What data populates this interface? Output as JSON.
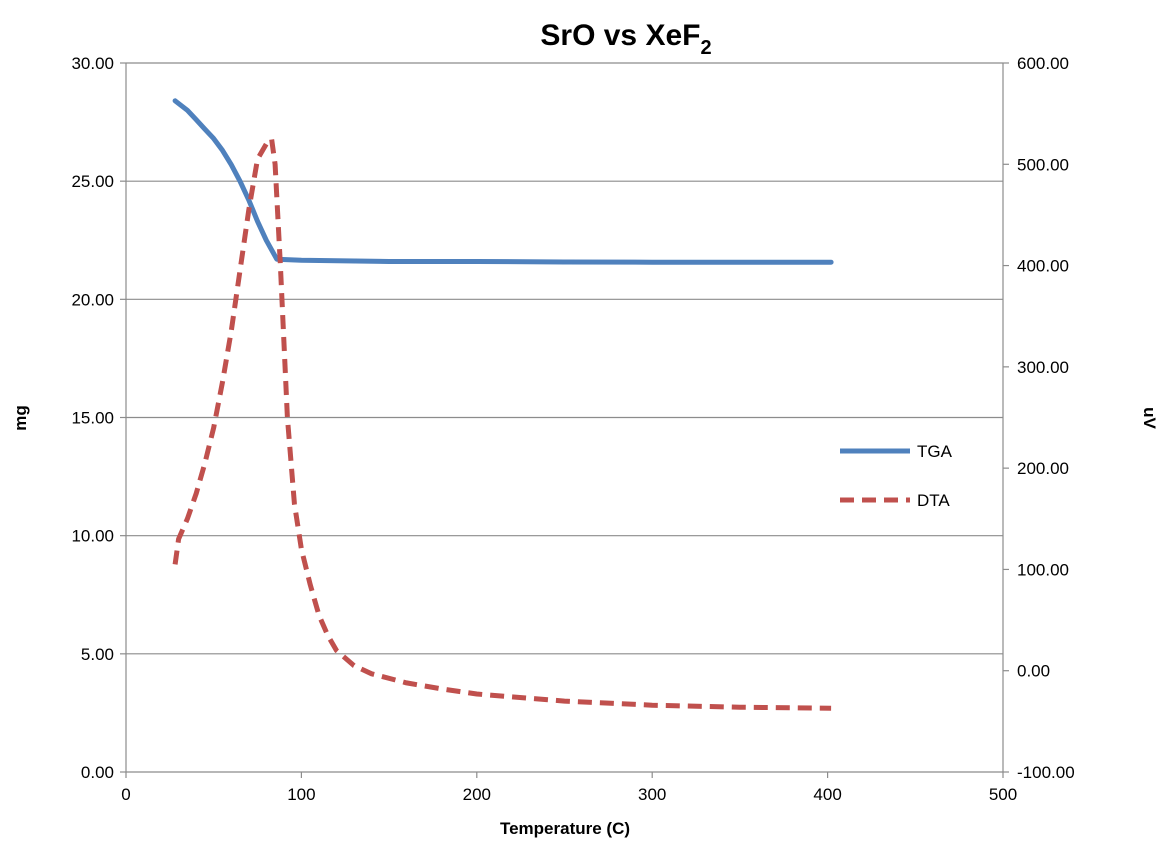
{
  "chart_data": {
    "type": "line",
    "title": "SrO vs XeF",
    "title_subscript": "2",
    "xlabel": "Temperature (C)",
    "ylabel": "mg",
    "y2label": "uV",
    "xlim": [
      0,
      500
    ],
    "ylim": [
      0,
      30
    ],
    "y2lim": [
      -100,
      600
    ],
    "x_ticks": [
      "0",
      "100",
      "200",
      "300",
      "400",
      "500"
    ],
    "y_ticks": [
      "0.00",
      "5.00",
      "10.00",
      "15.00",
      "20.00",
      "25.00",
      "30.00"
    ],
    "y2_ticks": [
      "-100.00",
      "0.00",
      "100.00",
      "200.00",
      "300.00",
      "400.00",
      "500.00",
      "600.00"
    ],
    "grid": "horizontal",
    "legend_position": "right",
    "series": [
      {
        "name": "TGA",
        "axis": "left",
        "color": "#4f81bd",
        "line_style": "solid",
        "x": [
          28,
          35,
          40,
          45,
          50,
          55,
          60,
          65,
          70,
          75,
          80,
          86,
          100,
          150,
          200,
          250,
          300,
          350,
          402
        ],
        "y": [
          28.4,
          28.0,
          27.6,
          27.2,
          26.8,
          26.3,
          25.7,
          25.0,
          24.2,
          23.3,
          22.5,
          21.7,
          21.65,
          21.6,
          21.6,
          21.58,
          21.57,
          21.57,
          21.57
        ]
      },
      {
        "name": "DTA",
        "axis": "right",
        "color": "#c0504d",
        "line_style": "dashed",
        "x": [
          28,
          30,
          35,
          40,
          45,
          50,
          55,
          60,
          65,
          70,
          75,
          80,
          83,
          85,
          88,
          92,
          96,
          100,
          105,
          110,
          115,
          120,
          130,
          140,
          160,
          180,
          200,
          250,
          300,
          350,
          402
        ],
        "y": [
          105,
          130,
          150,
          175,
          205,
          240,
          285,
          335,
          395,
          455,
          505,
          520,
          525,
          500,
          400,
          250,
          165,
          120,
          85,
          55,
          35,
          20,
          5,
          -3,
          -12,
          -18,
          -23,
          -30,
          -34,
          -36,
          -37
        ]
      }
    ]
  }
}
